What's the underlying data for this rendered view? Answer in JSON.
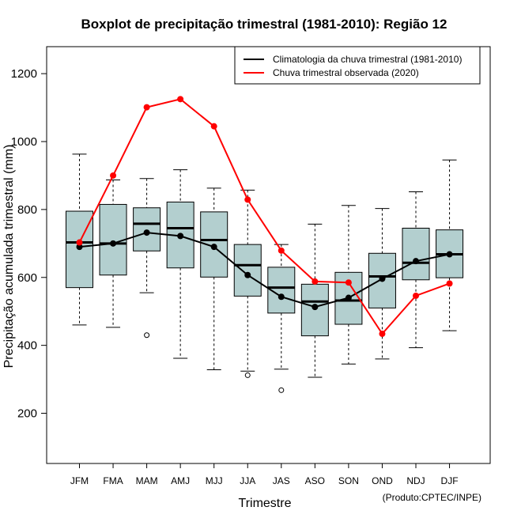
{
  "chart_data": {
    "type": "boxplot",
    "title": "Boxplot de precipitação trimestral (1981-2010): Região 12",
    "xlabel": "Trimestre",
    "ylabel": "Precipitação acumulada trimestral (mm)",
    "credit": "(Produto:CPTEC/INPE)",
    "ylim": [
      55,
      1270
    ],
    "yticks": [
      200,
      400,
      600,
      800,
      1000,
      1200
    ],
    "categories": [
      "JFM",
      "FMA",
      "MAM",
      "AMJ",
      "MJJ",
      "JJA",
      "JAS",
      "ASO",
      "SON",
      "OND",
      "NDJ",
      "DJF"
    ],
    "boxes": [
      {
        "whisker_low": 460,
        "q1": 570,
        "median": 703,
        "q3": 795,
        "whisker_high": 963,
        "outliers": []
      },
      {
        "whisker_low": 453,
        "q1": 607,
        "median": 700,
        "q3": 815,
        "whisker_high": 887,
        "outliers": []
      },
      {
        "whisker_low": 555,
        "q1": 678,
        "median": 758,
        "q3": 805,
        "whisker_high": 891,
        "outliers": [
          430
        ]
      },
      {
        "whisker_low": 362,
        "q1": 628,
        "median": 745,
        "q3": 822,
        "whisker_high": 917,
        "outliers": []
      },
      {
        "whisker_low": 328,
        "q1": 601,
        "median": 710,
        "q3": 793,
        "whisker_high": 863,
        "outliers": []
      },
      {
        "whisker_low": 324,
        "q1": 545,
        "median": 636,
        "q3": 697,
        "whisker_high": 857,
        "outliers": [
          312
        ]
      },
      {
        "whisker_low": 330,
        "q1": 495,
        "median": 570,
        "q3": 630,
        "whisker_high": 697,
        "outliers": [
          268
        ]
      },
      {
        "whisker_low": 306,
        "q1": 428,
        "median": 529,
        "q3": 580,
        "whisker_high": 757,
        "outliers": []
      },
      {
        "whisker_low": 345,
        "q1": 462,
        "median": 532,
        "q3": 615,
        "whisker_high": 812,
        "outliers": []
      },
      {
        "whisker_low": 360,
        "q1": 510,
        "median": 603,
        "q3": 671,
        "whisker_high": 803,
        "outliers": []
      },
      {
        "whisker_low": 393,
        "q1": 593,
        "median": 643,
        "q3": 745,
        "whisker_high": 852,
        "outliers": []
      },
      {
        "whisker_low": 443,
        "q1": 599,
        "median": 668,
        "q3": 740,
        "whisker_high": 946,
        "outliers": []
      }
    ],
    "series": [
      {
        "name": "Climatologia da chuva trimestral (1981-2010)",
        "color": "#000000",
        "values": [
          690,
          700,
          732,
          722,
          690,
          607,
          543,
          513,
          540,
          596,
          648,
          668
        ]
      },
      {
        "name": "Chuva trimestral observada (2020)",
        "color": "#ff0000",
        "values": [
          703,
          900,
          1101,
          1125,
          1045,
          829,
          679,
          588,
          585,
          434,
          546,
          582
        ]
      }
    ],
    "legend_position": "top-right",
    "box_fill": "#b3cfcf"
  }
}
